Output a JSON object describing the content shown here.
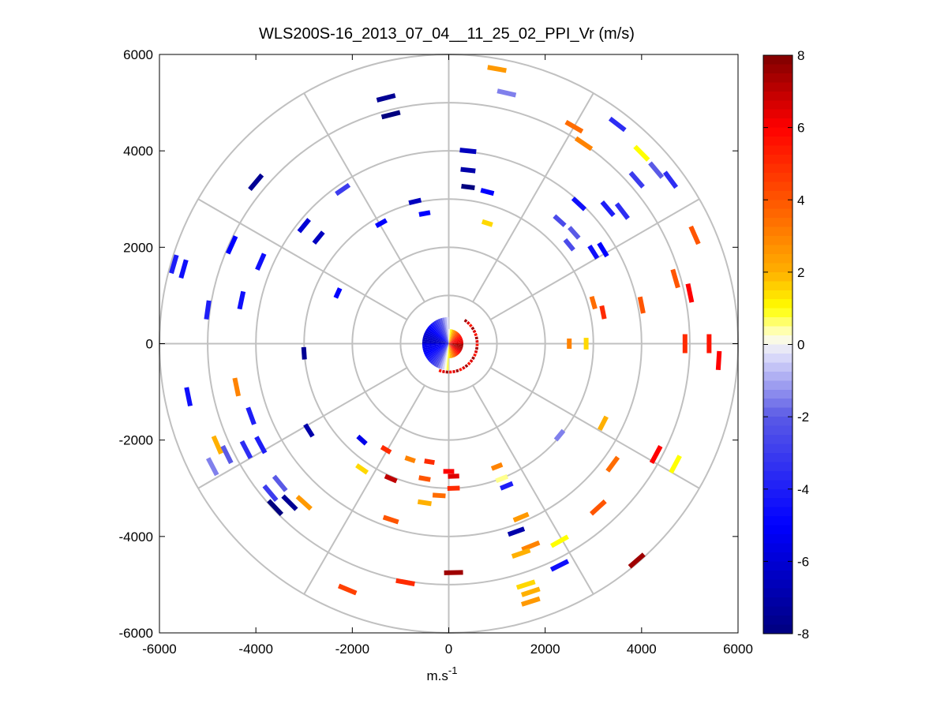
{
  "chart_data": {
    "type": "scatter",
    "subtype": "polar-ppi-velocity-map",
    "title": "WLS200S-16_2013_07_04__11_25_02_PPI_Vr (m/s)",
    "xlabel": "m.s",
    "xlabel_sup": "-1",
    "ylabel": "",
    "xlim": [
      -6000,
      6000
    ],
    "ylim": [
      -6000,
      6000
    ],
    "x_ticks": [
      -6000,
      -4000,
      -2000,
      0,
      2000,
      4000,
      6000
    ],
    "y_ticks": [
      6000,
      4000,
      2000,
      0,
      -2000,
      -4000,
      -6000
    ],
    "x_tick_labels": [
      "-6000",
      "-4000",
      "-2000",
      "0",
      "2000",
      "4000",
      "6000"
    ],
    "y_tick_labels": [
      "6000",
      "4000",
      "2000",
      "0",
      "-2000",
      "-4000",
      "-6000"
    ],
    "range_rings_m": [
      1000,
      2000,
      3000,
      4000,
      5000,
      6000
    ],
    "spoke_angles_deg": [
      0,
      30,
      60,
      90,
      120,
      150,
      180,
      210,
      240,
      270,
      300,
      330
    ],
    "colorbar": {
      "min": -8,
      "max": 8,
      "ticks": [
        8,
        6,
        4,
        2,
        0,
        -2,
        -4,
        -6,
        -8
      ],
      "tick_labels": [
        "8",
        "6",
        "4",
        "2",
        "0",
        "-2",
        "-4",
        "-6",
        "-8"
      ],
      "colormap": "blue-white-yellow-red",
      "stops": [
        {
          "v": -8,
          "c": "#00007f"
        },
        {
          "v": -5,
          "c": "#0000ff"
        },
        {
          "v": -2,
          "c": "#5a5ae6"
        },
        {
          "v": -0.2,
          "c": "#e4e4fb"
        },
        {
          "v": 0.2,
          "c": "#ffffe0"
        },
        {
          "v": 1,
          "c": "#ffff00"
        },
        {
          "v": 2,
          "c": "#ffb000"
        },
        {
          "v": 4,
          "c": "#ff5500"
        },
        {
          "v": 6,
          "c": "#ff0000"
        },
        {
          "v": 8,
          "c": "#7f0000"
        }
      ]
    },
    "near_field": {
      "radius_m": 550,
      "note": "dense blue (west) to red (east) disc near origin"
    },
    "points": [
      {
        "x": 1000,
        "y": 5700,
        "v": 2.5
      },
      {
        "x": 1200,
        "y": 5200,
        "v": -1.5
      },
      {
        "x": -1300,
        "y": 5100,
        "v": -7.5
      },
      {
        "x": -1200,
        "y": 4750,
        "v": -8
      },
      {
        "x": 2600,
        "y": 4500,
        "v": 3.5
      },
      {
        "x": 2800,
        "y": 4150,
        "v": 3
      },
      {
        "x": 3500,
        "y": 4550,
        "v": -3.5
      },
      {
        "x": 4000,
        "y": 3950,
        "v": 1
      },
      {
        "x": 400,
        "y": 4000,
        "v": -6.5
      },
      {
        "x": -4000,
        "y": 3350,
        "v": -7.5
      },
      {
        "x": 4300,
        "y": 3600,
        "v": -2
      },
      {
        "x": 3900,
        "y": 3400,
        "v": -3
      },
      {
        "x": 4600,
        "y": 3400,
        "v": -3.5
      },
      {
        "x": 400,
        "y": 3600,
        "v": -7
      },
      {
        "x": 400,
        "y": 3250,
        "v": -8
      },
      {
        "x": 800,
        "y": 3150,
        "v": -5
      },
      {
        "x": -2200,
        "y": 3200,
        "v": -3
      },
      {
        "x": -700,
        "y": 2950,
        "v": -6.5
      },
      {
        "x": -500,
        "y": 2700,
        "v": -5
      },
      {
        "x": 2700,
        "y": 2900,
        "v": -4.5
      },
      {
        "x": 3300,
        "y": 2800,
        "v": -4
      },
      {
        "x": 3600,
        "y": 2750,
        "v": -3.5
      },
      {
        "x": 2300,
        "y": 2550,
        "v": -2.5
      },
      {
        "x": 2600,
        "y": 2300,
        "v": -2
      },
      {
        "x": -3000,
        "y": 2450,
        "v": -6
      },
      {
        "x": -2700,
        "y": 2200,
        "v": -6.5
      },
      {
        "x": -1400,
        "y": 2500,
        "v": -5
      },
      {
        "x": 800,
        "y": 2500,
        "v": 1.5
      },
      {
        "x": -4500,
        "y": 2050,
        "v": -5
      },
      {
        "x": -3900,
        "y": 1700,
        "v": -4.5
      },
      {
        "x": -5700,
        "y": 1650,
        "v": -4
      },
      {
        "x": -5500,
        "y": 1550,
        "v": -4.5
      },
      {
        "x": 5100,
        "y": 2250,
        "v": 4
      },
      {
        "x": 3000,
        "y": 1900,
        "v": -4.5
      },
      {
        "x": 3200,
        "y": 1950,
        "v": -5
      },
      {
        "x": 2500,
        "y": 2050,
        "v": -2.5
      },
      {
        "x": 4700,
        "y": 1350,
        "v": 4
      },
      {
        "x": 5000,
        "y": 1050,
        "v": 6
      },
      {
        "x": -4300,
        "y": 900,
        "v": -4.5
      },
      {
        "x": -2300,
        "y": 1050,
        "v": -5
      },
      {
        "x": -5000,
        "y": 700,
        "v": -4
      },
      {
        "x": 3000,
        "y": 850,
        "v": 3.5
      },
      {
        "x": 3200,
        "y": 650,
        "v": 5
      },
      {
        "x": 4000,
        "y": 800,
        "v": 4
      },
      {
        "x": 2500,
        "y": 0,
        "v": 3
      },
      {
        "x": 2850,
        "y": 0,
        "v": 1.5
      },
      {
        "x": 4900,
        "y": 0,
        "v": 5
      },
      {
        "x": 5400,
        "y": 0,
        "v": 5.5
      },
      {
        "x": 5600,
        "y": -350,
        "v": 6
      },
      {
        "x": -3000,
        "y": -200,
        "v": -7.5
      },
      {
        "x": -4400,
        "y": -900,
        "v": 3
      },
      {
        "x": -5400,
        "y": -1100,
        "v": -4.5
      },
      {
        "x": -4100,
        "y": -1500,
        "v": -4
      },
      {
        "x": -2900,
        "y": -1800,
        "v": -7
      },
      {
        "x": -1800,
        "y": -2000,
        "v": -5.5
      },
      {
        "x": -4800,
        "y": -2100,
        "v": 2
      },
      {
        "x": -4600,
        "y": -2300,
        "v": -2
      },
      {
        "x": -4200,
        "y": -2200,
        "v": -3.5
      },
      {
        "x": -3900,
        "y": -2100,
        "v": -4
      },
      {
        "x": -4900,
        "y": -2550,
        "v": -1.5
      },
      {
        "x": -3500,
        "y": -2900,
        "v": -2
      },
      {
        "x": -3700,
        "y": -3100,
        "v": -3
      },
      {
        "x": -3300,
        "y": -3300,
        "v": -7.5
      },
      {
        "x": -3600,
        "y": -3400,
        "v": -8
      },
      {
        "x": -3000,
        "y": -3300,
        "v": 2.5
      },
      {
        "x": -1300,
        "y": -2200,
        "v": 5
      },
      {
        "x": -1800,
        "y": -2600,
        "v": 1.5
      },
      {
        "x": -800,
        "y": -2400,
        "v": 3
      },
      {
        "x": -400,
        "y": -2450,
        "v": 5
      },
      {
        "x": -1200,
        "y": -2800,
        "v": 7
      },
      {
        "x": -500,
        "y": -2800,
        "v": 4
      },
      {
        "x": 0,
        "y": -2650,
        "v": 6
      },
      {
        "x": 100,
        "y": -2750,
        "v": 6.5
      },
      {
        "x": 1000,
        "y": -2550,
        "v": 3
      },
      {
        "x": 1100,
        "y": -2800,
        "v": 0.5
      },
      {
        "x": 1200,
        "y": -2950,
        "v": -4
      },
      {
        "x": -1200,
        "y": -3650,
        "v": 4
      },
      {
        "x": -500,
        "y": -3300,
        "v": 2
      },
      {
        "x": -200,
        "y": -3150,
        "v": 3.5
      },
      {
        "x": 100,
        "y": -3000,
        "v": 5
      },
      {
        "x": 2300,
        "y": -1900,
        "v": -1.5
      },
      {
        "x": 3200,
        "y": -1650,
        "v": 2
      },
      {
        "x": 3400,
        "y": -2500,
        "v": 3.5
      },
      {
        "x": 3100,
        "y": -3400,
        "v": 4
      },
      {
        "x": 4300,
        "y": -2300,
        "v": 6
      },
      {
        "x": 4700,
        "y": -2500,
        "v": 1
      },
      {
        "x": 1500,
        "y": -3600,
        "v": 2.5
      },
      {
        "x": 1400,
        "y": -3900,
        "v": -7
      },
      {
        "x": 1700,
        "y": -4200,
        "v": 3
      },
      {
        "x": 1500,
        "y": -4350,
        "v": 2
      },
      {
        "x": 2300,
        "y": -4100,
        "v": 1
      },
      {
        "x": 2300,
        "y": -4600,
        "v": -4.5
      },
      {
        "x": 3900,
        "y": -4500,
        "v": 7.5
      },
      {
        "x": 100,
        "y": -4750,
        "v": 7.5
      },
      {
        "x": -900,
        "y": -4950,
        "v": 5
      },
      {
        "x": -2100,
        "y": -5100,
        "v": 4.5
      },
      {
        "x": 1600,
        "y": -5000,
        "v": 1.5
      },
      {
        "x": 1700,
        "y": -5150,
        "v": 2
      },
      {
        "x": 1700,
        "y": -5350,
        "v": 2.5
      }
    ]
  }
}
